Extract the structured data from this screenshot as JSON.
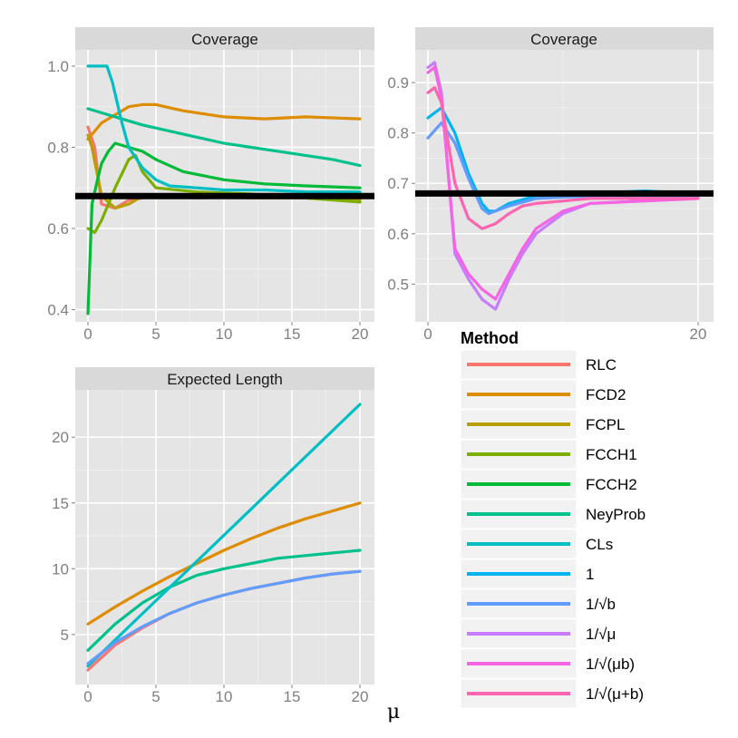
{
  "chart_data": [
    {
      "type": "line",
      "title": "Coverage",
      "xlim": [
        0,
        20
      ],
      "ylim": [
        0.37,
        1.04
      ],
      "xticks": [
        0,
        5,
        10,
        15,
        20
      ],
      "yticks": [
        0.4,
        0.6,
        0.8,
        1.0
      ],
      "ytick_labels": [
        "0.4",
        "0.6",
        "0.8",
        "1.0"
      ],
      "hline": 0.68,
      "series": [
        {
          "name": "RLC",
          "x": [
            0,
            0.5,
            1,
            2,
            3,
            5,
            8,
            12,
            16,
            20
          ],
          "y": [
            0.85,
            0.8,
            0.66,
            0.65,
            0.67,
            0.68,
            0.675,
            0.68,
            0.68,
            0.68
          ]
        },
        {
          "name": "FCD2",
          "x": [
            0,
            1,
            2,
            3,
            4,
            5,
            7,
            10,
            13,
            16,
            20
          ],
          "y": [
            0.82,
            0.86,
            0.88,
            0.9,
            0.905,
            0.905,
            0.89,
            0.875,
            0.87,
            0.875,
            0.87
          ]
        },
        {
          "name": "FCPL",
          "x": [
            0,
            0.3,
            1,
            2,
            3,
            4,
            5,
            8,
            12,
            16,
            20
          ],
          "y": [
            0.83,
            0.8,
            0.68,
            0.65,
            0.66,
            0.68,
            0.68,
            0.68,
            0.675,
            0.675,
            0.67
          ]
        },
        {
          "name": "FCCH1",
          "x": [
            0,
            0.5,
            1,
            2,
            3,
            3.5,
            4,
            5,
            8,
            12,
            16,
            20
          ],
          "y": [
            0.6,
            0.59,
            0.62,
            0.7,
            0.77,
            0.78,
            0.74,
            0.7,
            0.69,
            0.685,
            0.675,
            0.665
          ]
        },
        {
          "name": "FCCH2",
          "x": [
            0,
            0.3,
            0.7,
            1,
            1.5,
            2,
            3,
            4,
            5,
            7,
            10,
            13,
            16,
            20
          ],
          "y": [
            0.39,
            0.66,
            0.72,
            0.76,
            0.79,
            0.81,
            0.8,
            0.79,
            0.77,
            0.74,
            0.72,
            0.71,
            0.705,
            0.7
          ]
        },
        {
          "name": "NeyProb",
          "x": [
            0,
            2,
            4,
            6,
            8,
            10,
            12,
            14,
            16,
            18,
            20
          ],
          "y": [
            0.895,
            0.875,
            0.855,
            0.84,
            0.825,
            0.81,
            0.8,
            0.79,
            0.78,
            0.77,
            0.755
          ]
        },
        {
          "name": "CLs",
          "x": [
            0,
            1,
            1.4,
            1.8,
            2.5,
            3,
            4,
            5,
            6,
            8,
            10,
            13,
            16,
            20
          ],
          "y": [
            1.0,
            1.0,
            1.0,
            0.96,
            0.86,
            0.8,
            0.75,
            0.72,
            0.705,
            0.7,
            0.695,
            0.695,
            0.69,
            0.69
          ]
        }
      ]
    },
    {
      "type": "line",
      "title": "Coverage",
      "xlim": [
        0,
        20
      ],
      "ylim": [
        0.425,
        0.965
      ],
      "xticks": [
        0,
        20
      ],
      "yticks": [
        0.5,
        0.6,
        0.7,
        0.8,
        0.9
      ],
      "ytick_labels": [
        "0.5",
        "0.6",
        "0.7",
        "0.8",
        "0.9"
      ],
      "hline": 0.68,
      "series": [
        {
          "name": "1",
          "x": [
            0,
            1,
            2,
            3,
            4,
            4.5,
            5,
            6,
            8,
            12,
            16,
            20
          ],
          "y": [
            0.83,
            0.85,
            0.8,
            0.72,
            0.66,
            0.645,
            0.645,
            0.66,
            0.675,
            0.68,
            0.685,
            0.68
          ]
        },
        {
          "name": "1/√b",
          "x": [
            0,
            1,
            2,
            3,
            4,
            4.5,
            5,
            6,
            8,
            12,
            16,
            20
          ],
          "y": [
            0.79,
            0.82,
            0.78,
            0.71,
            0.65,
            0.64,
            0.645,
            0.655,
            0.67,
            0.675,
            0.675,
            0.675
          ]
        },
        {
          "name": "1/√μ",
          "x": [
            0,
            0.5,
            1,
            1.5,
            2,
            3,
            4,
            5,
            6,
            7,
            8,
            10,
            12,
            16,
            20
          ],
          "y": [
            0.93,
            0.94,
            0.88,
            0.72,
            0.56,
            0.51,
            0.47,
            0.45,
            0.51,
            0.56,
            0.6,
            0.64,
            0.66,
            0.665,
            0.67
          ]
        },
        {
          "name": "1/√(μb)",
          "x": [
            0,
            0.5,
            1,
            1.5,
            2,
            3,
            4,
            5,
            6,
            7,
            8,
            10,
            12,
            16,
            20
          ],
          "y": [
            0.92,
            0.93,
            0.87,
            0.72,
            0.57,
            0.52,
            0.49,
            0.47,
            0.52,
            0.57,
            0.61,
            0.645,
            0.66,
            0.665,
            0.67
          ]
        },
        {
          "name": "1/√(μ+b)",
          "x": [
            0,
            0.5,
            1,
            1.5,
            2,
            3,
            4,
            5,
            6,
            7,
            8,
            10,
            12,
            16,
            20
          ],
          "y": [
            0.88,
            0.89,
            0.86,
            0.78,
            0.7,
            0.63,
            0.61,
            0.62,
            0.64,
            0.655,
            0.66,
            0.665,
            0.67,
            0.67,
            0.67
          ]
        }
      ]
    },
    {
      "type": "line",
      "title": "Expected Length",
      "xlim": [
        0,
        20
      ],
      "ylim": [
        1.2,
        23.6
      ],
      "xticks": [
        0,
        5,
        10,
        15,
        20
      ],
      "yticks": [
        5,
        10,
        15,
        20
      ],
      "ytick_labels": [
        "5",
        "10",
        "15",
        "20"
      ],
      "series": [
        {
          "name": "RLC",
          "x": [
            0,
            2,
            4,
            6,
            8,
            10,
            12,
            14,
            16,
            18,
            20
          ],
          "y": [
            2.3,
            4.2,
            5.5,
            6.6,
            7.4,
            8.0,
            8.5,
            8.9,
            9.3,
            9.6,
            9.8
          ]
        },
        {
          "name": "FCD2",
          "x": [
            0,
            2,
            4,
            6,
            8,
            10,
            12,
            14,
            16,
            18,
            20
          ],
          "y": [
            5.8,
            7.1,
            8.3,
            9.4,
            10.4,
            11.4,
            12.3,
            13.1,
            13.8,
            14.4,
            15.0
          ]
        },
        {
          "name": "NeyProb",
          "x": [
            0,
            2,
            4,
            6,
            8,
            10,
            12,
            14,
            16,
            18,
            20
          ],
          "y": [
            3.8,
            5.8,
            7.4,
            8.6,
            9.5,
            10.0,
            10.4,
            10.8,
            11.0,
            11.2,
            11.4
          ]
        },
        {
          "name": "CLs",
          "x": [
            0,
            20
          ],
          "y": [
            2.6,
            22.5
          ]
        },
        {
          "name": "1/√b",
          "x": [
            0,
            2,
            4,
            6,
            8,
            10,
            12,
            14,
            16,
            18,
            20
          ],
          "y": [
            2.8,
            4.4,
            5.6,
            6.6,
            7.4,
            8.0,
            8.5,
            8.9,
            9.3,
            9.6,
            9.8
          ]
        }
      ]
    }
  ],
  "legend": {
    "title": "Method",
    "entries": [
      {
        "label": "RLC",
        "color": "#F8766D"
      },
      {
        "label": "FCD2",
        "color": "#DE8C00"
      },
      {
        "label": "FCPL",
        "color": "#B79F00"
      },
      {
        "label": "FCCH1",
        "color": "#7CAE00"
      },
      {
        "label": "FCCH2",
        "color": "#00BA38"
      },
      {
        "label": "NeyProb",
        "color": "#00C08B"
      },
      {
        "label": "CLs",
        "color": "#00BFC4"
      },
      {
        "label": "1",
        "color": "#00B4F0"
      },
      {
        "label": "1/√b",
        "color": "#619CFF"
      },
      {
        "label": "1/√μ",
        "color": "#C77CFF"
      },
      {
        "label": "1/√(μb)",
        "color": "#F564E3"
      },
      {
        "label": "1/√(μ+b)",
        "color": "#FF64B0"
      }
    ]
  },
  "xlabel": "μ"
}
